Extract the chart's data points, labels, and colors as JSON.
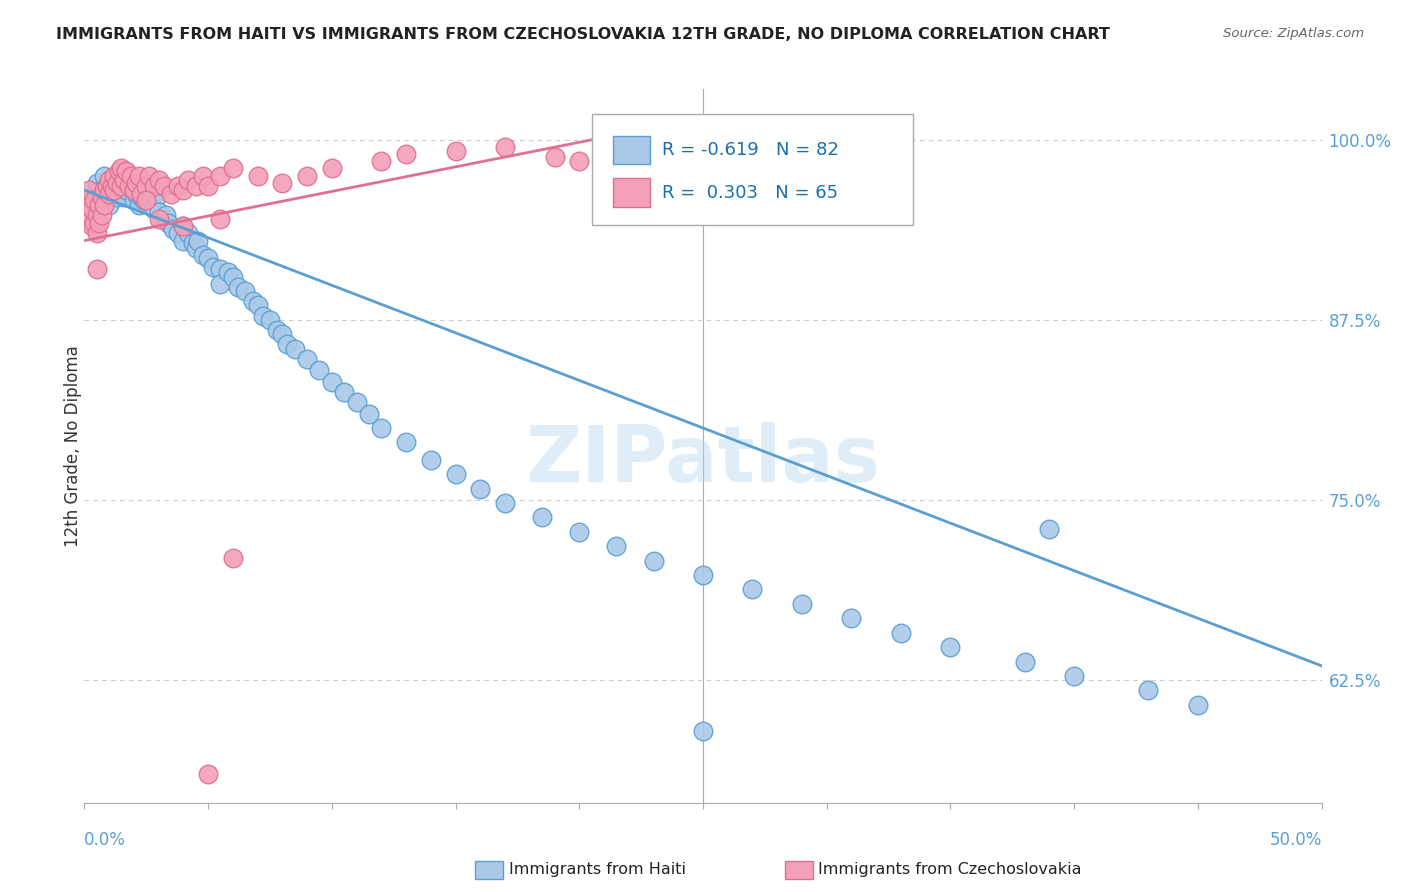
{
  "title": "IMMIGRANTS FROM HAITI VS IMMIGRANTS FROM CZECHOSLOVAKIA 12TH GRADE, NO DIPLOMA CORRELATION CHART",
  "source": "Source: ZipAtlas.com",
  "ylabel_label": "12th Grade, No Diploma",
  "xmin": 0.0,
  "xmax": 0.5,
  "ymin": 0.54,
  "ymax": 1.035,
  "legend1_R": "-0.619",
  "legend1_N": "82",
  "legend2_R": "0.303",
  "legend2_N": "65",
  "color_haiti": "#aac9e8",
  "color_haiti_line": "#5a9fd4",
  "color_czech": "#f4a0b8",
  "color_czech_line": "#e07090",
  "haiti_line_x0": 0.0,
  "haiti_line_y0": 0.965,
  "haiti_line_x1": 0.5,
  "haiti_line_y1": 0.635,
  "czech_line_x0": 0.0,
  "czech_line_y0": 0.93,
  "czech_line_x1": 0.22,
  "czech_line_y1": 1.005,
  "watermark": "ZIPatlas",
  "background_color": "#ffffff",
  "grid_color": "#cccccc",
  "ylabel_ticks": [
    62.5,
    75.0,
    87.5,
    100.0
  ],
  "haiti_scatter_x": [
    0.003,
    0.005,
    0.007,
    0.008,
    0.009,
    0.01,
    0.011,
    0.012,
    0.013,
    0.014,
    0.015,
    0.016,
    0.017,
    0.018,
    0.019,
    0.02,
    0.021,
    0.022,
    0.023,
    0.024,
    0.025,
    0.026,
    0.027,
    0.028,
    0.029,
    0.03,
    0.032,
    0.033,
    0.034,
    0.036,
    0.038,
    0.04,
    0.04,
    0.042,
    0.044,
    0.045,
    0.046,
    0.048,
    0.05,
    0.052,
    0.055,
    0.055,
    0.058,
    0.06,
    0.062,
    0.065,
    0.068,
    0.07,
    0.072,
    0.075,
    0.078,
    0.08,
    0.082,
    0.085,
    0.09,
    0.095,
    0.1,
    0.105,
    0.11,
    0.115,
    0.12,
    0.13,
    0.14,
    0.15,
    0.16,
    0.17,
    0.185,
    0.2,
    0.215,
    0.23,
    0.25,
    0.27,
    0.29,
    0.31,
    0.33,
    0.35,
    0.38,
    0.4,
    0.43,
    0.45,
    0.25,
    0.39
  ],
  "haiti_scatter_y": [
    0.96,
    0.97,
    0.965,
    0.975,
    0.968,
    0.955,
    0.97,
    0.965,
    0.96,
    0.968,
    0.975,
    0.96,
    0.965,
    0.97,
    0.968,
    0.958,
    0.962,
    0.955,
    0.96,
    0.958,
    0.965,
    0.96,
    0.958,
    0.952,
    0.96,
    0.95,
    0.945,
    0.948,
    0.942,
    0.938,
    0.935,
    0.94,
    0.93,
    0.935,
    0.928,
    0.925,
    0.93,
    0.92,
    0.918,
    0.912,
    0.91,
    0.9,
    0.908,
    0.905,
    0.898,
    0.895,
    0.888,
    0.885,
    0.878,
    0.875,
    0.868,
    0.865,
    0.858,
    0.855,
    0.848,
    0.84,
    0.832,
    0.825,
    0.818,
    0.81,
    0.8,
    0.79,
    0.778,
    0.768,
    0.758,
    0.748,
    0.738,
    0.728,
    0.718,
    0.708,
    0.698,
    0.688,
    0.678,
    0.668,
    0.658,
    0.648,
    0.638,
    0.628,
    0.618,
    0.608,
    0.59,
    0.73
  ],
  "czech_scatter_x": [
    0.001,
    0.002,
    0.002,
    0.003,
    0.003,
    0.004,
    0.004,
    0.005,
    0.005,
    0.006,
    0.006,
    0.007,
    0.007,
    0.008,
    0.008,
    0.009,
    0.01,
    0.01,
    0.011,
    0.012,
    0.012,
    0.013,
    0.014,
    0.015,
    0.015,
    0.016,
    0.017,
    0.018,
    0.019,
    0.02,
    0.021,
    0.022,
    0.023,
    0.025,
    0.026,
    0.028,
    0.03,
    0.032,
    0.035,
    0.038,
    0.04,
    0.042,
    0.045,
    0.048,
    0.05,
    0.055,
    0.06,
    0.07,
    0.08,
    0.09,
    0.1,
    0.12,
    0.13,
    0.15,
    0.17,
    0.19,
    0.2,
    0.22,
    0.025,
    0.03,
    0.04,
    0.055,
    0.06,
    0.05,
    0.005
  ],
  "czech_scatter_y": [
    0.945,
    0.955,
    0.965,
    0.94,
    0.952,
    0.942,
    0.958,
    0.935,
    0.948,
    0.942,
    0.955,
    0.948,
    0.96,
    0.955,
    0.965,
    0.968,
    0.972,
    0.962,
    0.968,
    0.965,
    0.975,
    0.97,
    0.978,
    0.968,
    0.98,
    0.972,
    0.978,
    0.968,
    0.975,
    0.965,
    0.97,
    0.975,
    0.962,
    0.968,
    0.975,
    0.968,
    0.972,
    0.968,
    0.962,
    0.968,
    0.965,
    0.972,
    0.968,
    0.975,
    0.968,
    0.975,
    0.98,
    0.975,
    0.97,
    0.975,
    0.98,
    0.985,
    0.99,
    0.992,
    0.995,
    0.988,
    0.985,
    0.992,
    0.958,
    0.945,
    0.94,
    0.945,
    0.71,
    0.56,
    0.91
  ]
}
